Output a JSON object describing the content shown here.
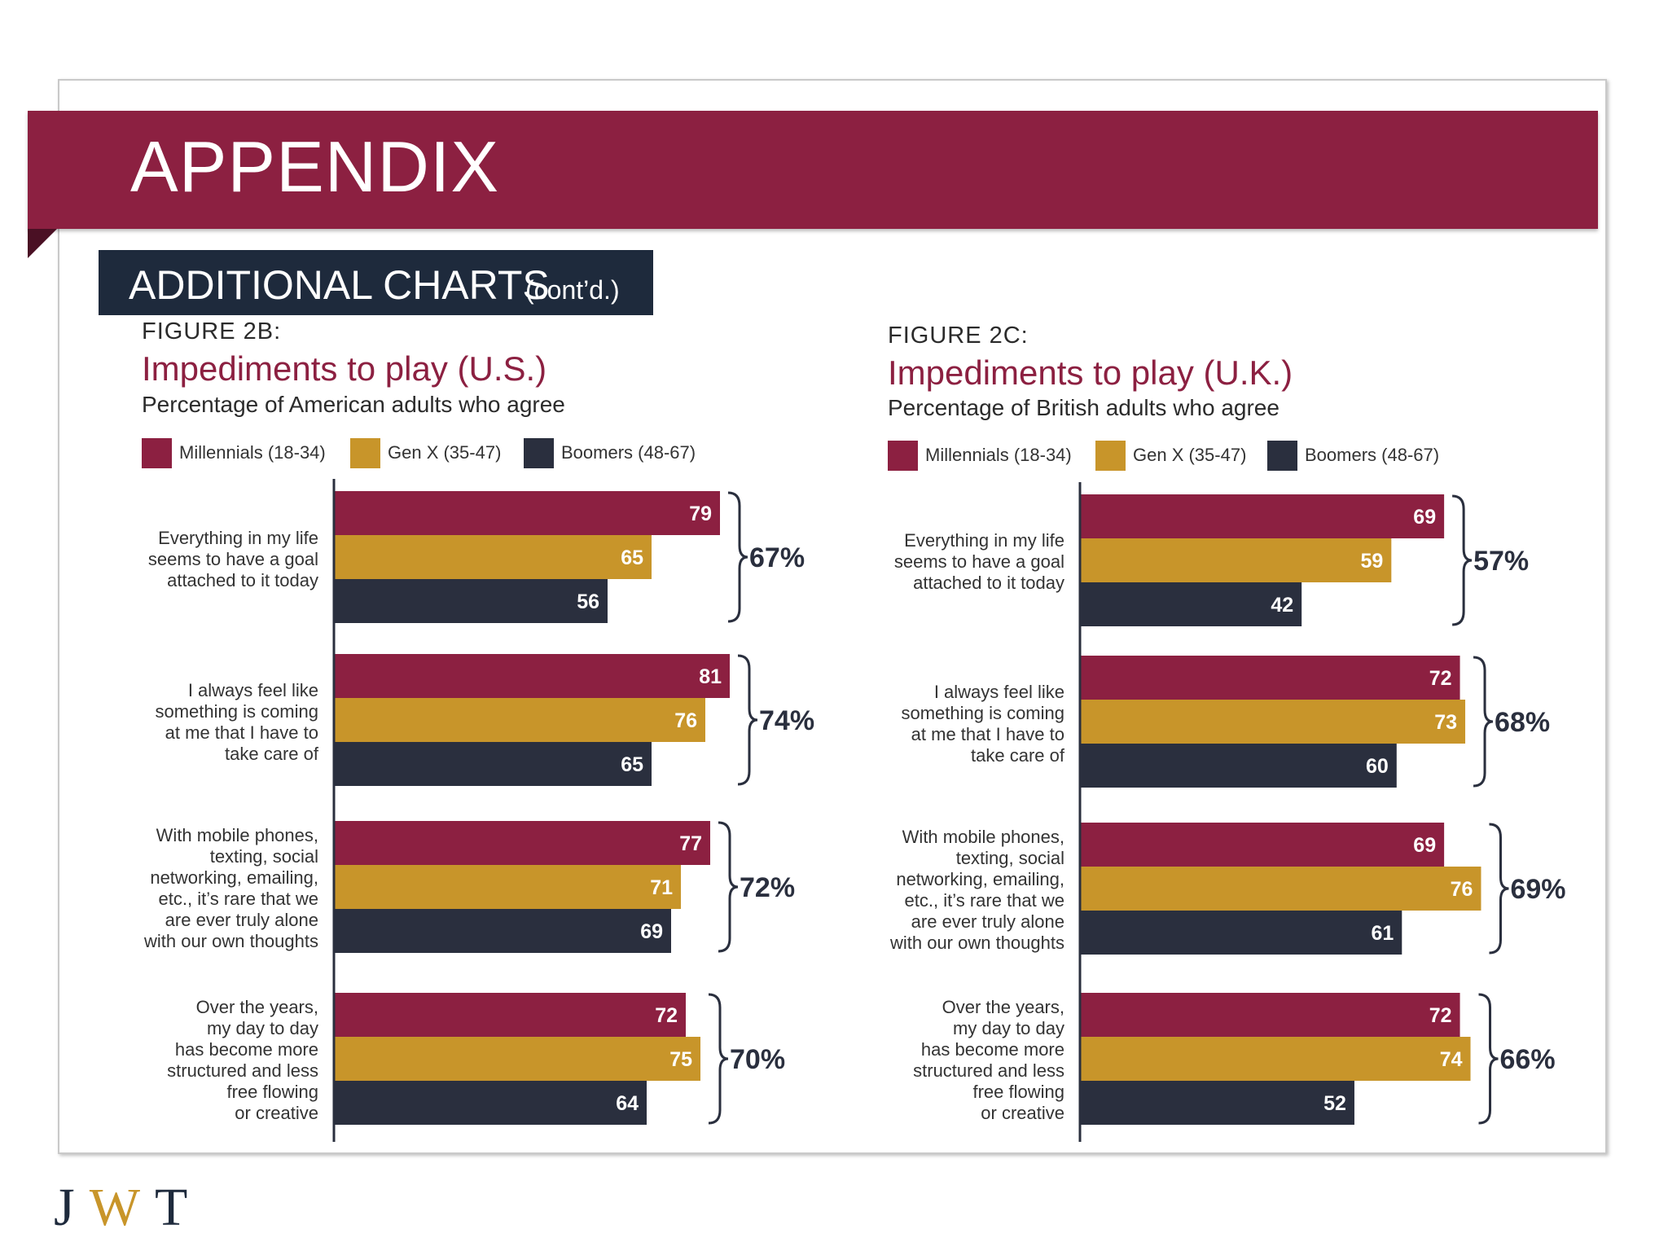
{
  "header": {
    "title": "APPENDIX"
  },
  "subheader": {
    "main": "ADDITIONAL CHARTS",
    "sub": "(cont’d.)"
  },
  "logo": {
    "text": "JWT"
  },
  "colors": {
    "millennials": "#8c2041",
    "genx": "#c8952a",
    "boomers": "#2a2f3e",
    "brand": "#8c2041"
  },
  "chart_data": [
    {
      "type": "bar",
      "figure": "FIGURE 2B:",
      "title": "Impediments to play (U.S.)",
      "subtitle": "Percentage of American adults who agree",
      "legend": [
        "Millennials (18-34)",
        "Gen X (35-47)",
        "Boomers (48-67)"
      ],
      "categories": [
        "Everything in my life\nseems to have a goal\nattached to it today",
        "I always feel like\nsomething is coming\nat me that I have to\ntake care of",
        "With mobile phones,\ntexting, social\nnetworking, emailing,\netc., it’s rare that we\nare ever truly alone\nwith our own thoughts",
        "Over the years,\nmy day to day\nhas become more\nstructured and less\nfree flowing\nor creative"
      ],
      "series": [
        {
          "name": "Millennials (18-34)",
          "values": [
            79,
            81,
            77,
            72
          ]
        },
        {
          "name": "Gen X (35-47)",
          "values": [
            65,
            76,
            71,
            75
          ]
        },
        {
          "name": "Boomers (48-67)",
          "values": [
            56,
            65,
            69,
            64
          ]
        }
      ],
      "totals": [
        "67%",
        "74%",
        "72%",
        "70%"
      ],
      "orientation": "horizontal",
      "xlim": [
        0,
        100
      ]
    },
    {
      "type": "bar",
      "figure": "FIGURE 2C:",
      "title": "Impediments to play (U.K.)",
      "subtitle": "Percentage of British adults who agree",
      "legend": [
        "Millennials (18-34)",
        "Gen X (35-47)",
        "Boomers (48-67)"
      ],
      "categories": [
        "Everything in my life\nseems to have a goal\nattached to it today",
        "I always feel like\nsomething is coming\nat me that I have to\ntake care of",
        "With mobile phones,\ntexting, social\nnetworking, emailing,\netc., it’s rare that we\nare ever truly alone\nwith our own thoughts",
        "Over the years,\nmy day to day\nhas become more\nstructured and less\nfree flowing\nor creative"
      ],
      "series": [
        {
          "name": "Millennials (18-34)",
          "values": [
            69,
            72,
            69,
            72
          ]
        },
        {
          "name": "Gen X (35-47)",
          "values": [
            59,
            73,
            76,
            74
          ]
        },
        {
          "name": "Boomers (48-67)",
          "values": [
            42,
            60,
            61,
            52
          ]
        }
      ],
      "totals": [
        "57%",
        "68%",
        "69%",
        "66%"
      ],
      "orientation": "horizontal",
      "xlim": [
        0,
        100
      ]
    }
  ]
}
